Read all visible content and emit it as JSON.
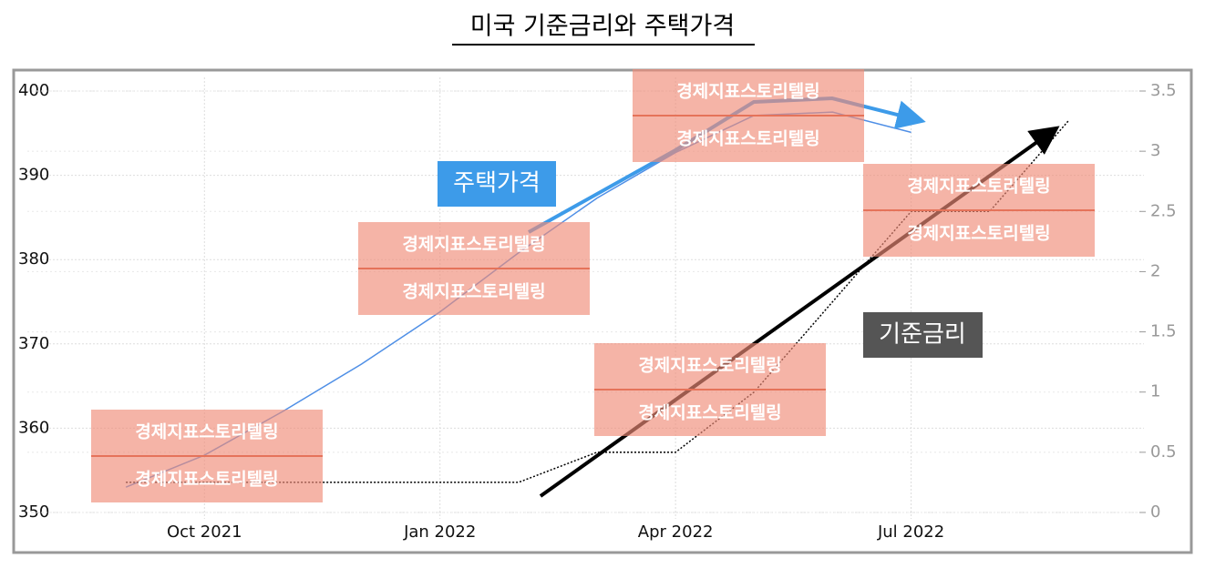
{
  "chart_data": {
    "type": "line",
    "title": "미국 기준금리와 주택가격",
    "x": [
      "2021-09",
      "2021-10",
      "2021-11",
      "2021-12",
      "2022-01",
      "2022-02",
      "2022-03",
      "2022-04",
      "2022-05",
      "2022-06",
      "2022-07",
      "2022-08",
      "2022-09"
    ],
    "xlim": [
      "2021-08",
      "2022-10"
    ],
    "xticks": [
      {
        "value": "2021-10",
        "label": "Oct 2021"
      },
      {
        "value": "2022-01",
        "label": "Jan 2022"
      },
      {
        "value": "2022-04",
        "label": "Apr 2022"
      },
      {
        "value": "2022-07",
        "label": "Jul 2022"
      }
    ],
    "ylim": [
      350,
      400
    ],
    "yticks": [
      350,
      360,
      370,
      380,
      390,
      400
    ],
    "y2lim": [
      0,
      3.5
    ],
    "y2ticks": [
      0,
      0.5,
      1,
      1.5,
      2,
      2.5,
      3,
      3.5
    ],
    "grid": true,
    "series": [
      {
        "name": "주택가격",
        "color": "#4f8fe6",
        "values": [
          353,
          356.8,
          362,
          367.6,
          373.8,
          380.8,
          387.3,
          392.7,
          397.1,
          397.5,
          395.1,
          null,
          null
        ]
      },
      {
        "name": "기준금리",
        "color": "#000000",
        "axis": "y2",
        "values": [
          0.25,
          0.25,
          0.25,
          0.25,
          0.25,
          0.25,
          0.5,
          0.5,
          1,
          1.75,
          2.5,
          2.5,
          3.25
        ]
      }
    ],
    "watermark": "경제지표스토리텔링"
  }
}
